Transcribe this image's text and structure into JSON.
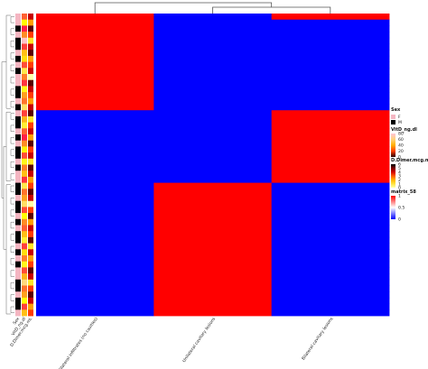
{
  "chart_data": {
    "type": "heatmap",
    "columns": [
      "Bilateral infiltrates (no cavities)",
      "Unilateral cavitary lesions",
      "Bilateral cavitary lesions"
    ],
    "row_groups": [
      {
        "rows": 16,
        "values": [
          1,
          0,
          0
        ],
        "first_row_override": [
          1,
          0,
          1
        ]
      },
      {
        "rows": 12,
        "values": [
          0,
          0,
          1
        ]
      },
      {
        "rows": 22,
        "values": [
          0,
          1,
          0
        ]
      }
    ],
    "annotation_tracks": [
      "Sex",
      "VitD_ng.dl",
      "D.Dimer.mcg.mL"
    ],
    "annotation_values": {
      "Sex": [
        "F",
        "F",
        "M",
        "F",
        "M",
        "M",
        "F",
        "M",
        "F",
        "M",
        "F",
        "F",
        "M",
        "M",
        "F",
        "M",
        "F",
        "M",
        "M",
        "F",
        "M",
        "F",
        "M",
        "M",
        "F",
        "M",
        "F",
        "F",
        "M",
        "M",
        "F",
        "M",
        "M",
        "F",
        "M",
        "F",
        "M",
        "M",
        "F",
        "M",
        "F",
        "M",
        "F",
        "F",
        "M",
        "M",
        "F",
        "M",
        "M",
        "F"
      ],
      "VitD_ng.dl": [
        15,
        40,
        5,
        22,
        80,
        10,
        30,
        35,
        12,
        55,
        20,
        8,
        45,
        25,
        18,
        60,
        10,
        28,
        50,
        15,
        5,
        22,
        38,
        12,
        45,
        20,
        30,
        8,
        55,
        18,
        25,
        60,
        12,
        40,
        22,
        15,
        30,
        50,
        10,
        35,
        20,
        45,
        12,
        28,
        65,
        18,
        25,
        40,
        10,
        30
      ],
      "D.Dimer.mcg.mL": [
        2,
        4,
        1,
        3,
        5,
        2,
        1,
        4,
        3,
        2,
        6,
        1,
        2,
        3,
        4,
        2,
        1,
        5,
        3,
        2,
        4,
        1,
        3,
        2,
        5,
        1,
        2,
        4,
        3,
        1,
        2,
        6,
        3,
        1,
        4,
        2,
        3,
        1,
        5,
        2,
        4,
        3,
        1,
        2,
        5,
        3,
        1,
        2,
        4,
        3
      ]
    },
    "legends": {
      "sex": {
        "title": "Sex",
        "entries": [
          {
            "label": "F",
            "color": "#f4b6c2"
          },
          {
            "label": "M",
            "color": "#000000"
          }
        ]
      },
      "vitd": {
        "title": "VitD_ng.dl",
        "ticks": [
          "80",
          "60",
          "40",
          "20",
          "0"
        ]
      },
      "ddimer": {
        "title": "D.Dimer.mcg.mL",
        "ticks": [
          "6",
          "5",
          "4",
          "3",
          "2",
          "1",
          "0"
        ]
      },
      "matrix": {
        "title": "matrix_58",
        "ticks": [
          "1",
          "0.5",
          "0"
        ]
      }
    },
    "colors": {
      "high": "#ff0000",
      "low": "#0000ff",
      "mid": "#ffffff",
      "sex_f": "#f4b6c2",
      "sex_m": "#000000"
    },
    "column_dendrogram": true,
    "row_dendrogram": true
  }
}
